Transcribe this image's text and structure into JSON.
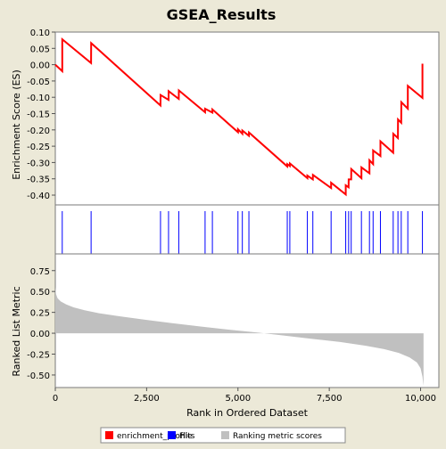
{
  "chart_data": {
    "type": "line",
    "title": "GSEA_Results",
    "xlabel": "Rank in Ordered Dataset",
    "ylabel_top": "Enrichment Score (ES)",
    "ylabel_bottom": "Ranked List Metric",
    "xlim": [
      0,
      10500
    ],
    "es_ylim": [
      -0.43,
      0.1
    ],
    "metric_ylim": [
      -0.65,
      0.95
    ],
    "x_ticks": [
      0,
      2500,
      5000,
      7500,
      10000
    ],
    "x_tick_labels": [
      "0",
      "2,500",
      "5,000",
      "7,500",
      "10,000"
    ],
    "es_ticks": [
      0.1,
      0.05,
      0.0,
      -0.05,
      -0.1,
      -0.15,
      -0.2,
      -0.25,
      -0.3,
      -0.35,
      -0.4
    ],
    "es_tick_labels": [
      "0.10",
      "0.05",
      "0.00",
      "-0.05",
      "-0.10",
      "-0.15",
      "-0.20",
      "-0.25",
      "-0.30",
      "-0.35",
      "-0.40"
    ],
    "metric_ticks": [
      0.75,
      0.5,
      0.25,
      0.0,
      -0.25,
      -0.5
    ],
    "metric_tick_labels": [
      "0.75",
      "0.50",
      "0.25",
      "0.00",
      "-0.25",
      "-0.50"
    ],
    "hits": [
      190,
      980,
      2880,
      3100,
      3380,
      4100,
      4300,
      5000,
      5120,
      5300,
      6350,
      6420,
      6900,
      7050,
      7550,
      7950,
      8030,
      8100,
      8380,
      8600,
      8700,
      8900,
      9250,
      9380,
      9470,
      9650,
      10050
    ],
    "enrichment_profile": [
      [
        0,
        0.0
      ],
      [
        190,
        -0.02
      ],
      [
        191,
        0.078
      ],
      [
        980,
        0.005
      ],
      [
        981,
        0.066
      ],
      [
        2880,
        -0.125
      ],
      [
        2881,
        -0.093
      ],
      [
        3100,
        -0.108
      ],
      [
        3101,
        -0.081
      ],
      [
        3380,
        -0.105
      ],
      [
        3381,
        -0.079
      ],
      [
        4100,
        -0.146
      ],
      [
        4101,
        -0.135
      ],
      [
        4300,
        -0.147
      ],
      [
        4301,
        -0.137
      ],
      [
        5000,
        -0.207
      ],
      [
        5001,
        -0.198
      ],
      [
        5120,
        -0.212
      ],
      [
        5121,
        -0.202
      ],
      [
        5300,
        -0.218
      ],
      [
        5301,
        -0.208
      ],
      [
        6350,
        -0.312
      ],
      [
        6351,
        -0.305
      ],
      [
        6420,
        -0.311
      ],
      [
        6421,
        -0.303
      ],
      [
        6900,
        -0.348
      ],
      [
        6901,
        -0.34
      ],
      [
        7050,
        -0.352
      ],
      [
        7051,
        -0.338
      ],
      [
        7550,
        -0.378
      ],
      [
        7551,
        -0.362
      ],
      [
        7950,
        -0.398
      ],
      [
        7951,
        -0.37
      ],
      [
        8030,
        -0.376
      ],
      [
        8031,
        -0.352
      ],
      [
        8100,
        -0.352
      ],
      [
        8101,
        -0.32
      ],
      [
        8380,
        -0.348
      ],
      [
        8381,
        -0.315
      ],
      [
        8600,
        -0.333
      ],
      [
        8601,
        -0.293
      ],
      [
        8700,
        -0.305
      ],
      [
        8701,
        -0.263
      ],
      [
        8900,
        -0.28
      ],
      [
        8901,
        -0.235
      ],
      [
        9250,
        -0.27
      ],
      [
        9251,
        -0.212
      ],
      [
        9380,
        -0.225
      ],
      [
        9381,
        -0.168
      ],
      [
        9470,
        -0.178
      ],
      [
        9471,
        -0.115
      ],
      [
        9650,
        -0.135
      ],
      [
        9651,
        -0.065
      ],
      [
        10050,
        -0.102
      ],
      [
        10051,
        0.003
      ]
    ],
    "ranked_metric": [
      [
        0,
        0.55
      ],
      [
        20,
        0.47
      ],
      [
        60,
        0.42
      ],
      [
        150,
        0.38
      ],
      [
        300,
        0.345
      ],
      [
        500,
        0.31
      ],
      [
        800,
        0.275
      ],
      [
        1200,
        0.24
      ],
      [
        1800,
        0.2
      ],
      [
        2500,
        0.16
      ],
      [
        3200,
        0.12
      ],
      [
        4000,
        0.08
      ],
      [
        4800,
        0.04
      ],
      [
        5500,
        0.01
      ],
      [
        6200,
        -0.025
      ],
      [
        7000,
        -0.065
      ],
      [
        7800,
        -0.105
      ],
      [
        8500,
        -0.15
      ],
      [
        9000,
        -0.19
      ],
      [
        9400,
        -0.235
      ],
      [
        9700,
        -0.29
      ],
      [
        9900,
        -0.35
      ],
      [
        10000,
        -0.42
      ],
      [
        10050,
        -0.52
      ],
      [
        10080,
        -0.63
      ]
    ],
    "legend": [
      {
        "label": "enrichment_profile",
        "color": "#ff0000"
      },
      {
        "label": "Hits",
        "color": "#0000ff"
      },
      {
        "label": "Ranking metric scores",
        "color": "#c0c0c0"
      }
    ],
    "legend_position": "bottom"
  },
  "colors": {
    "background": "#ece9d8",
    "plot_background": "#ffffff",
    "profile_line": "#ff0000",
    "hit_line": "#0000ff",
    "metric_fill": "#c0c0c0"
  }
}
